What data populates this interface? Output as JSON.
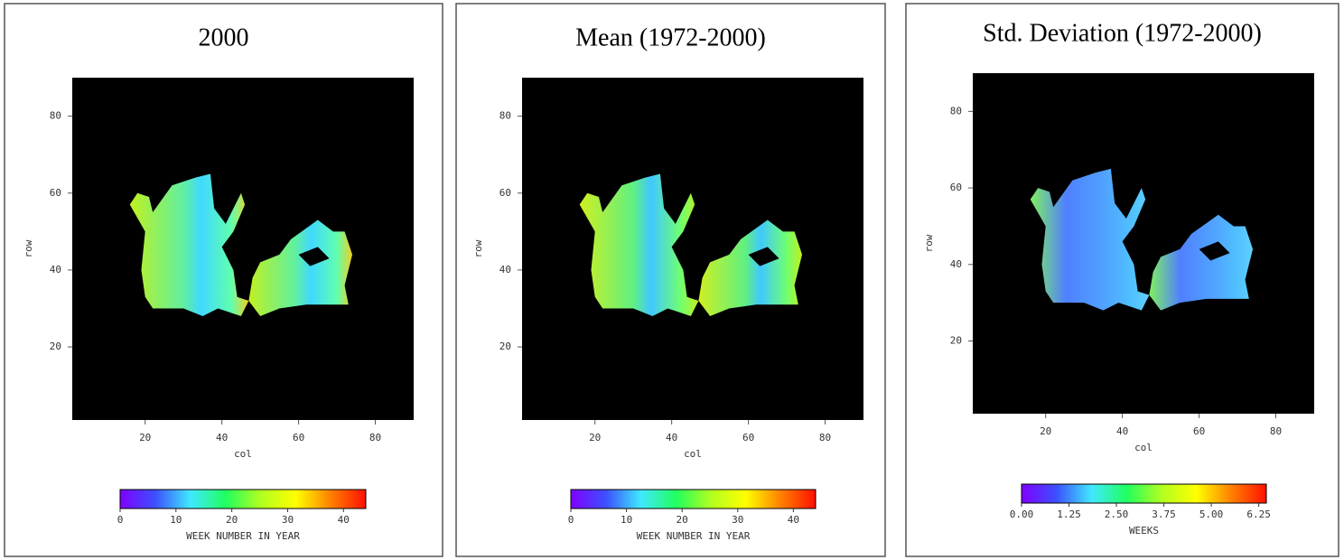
{
  "chart_data": [
    {
      "type": "heatmap",
      "title": "2000",
      "xlabel": "col",
      "ylabel": "row",
      "xlim": [
        1,
        90
      ],
      "ylim": [
        1,
        90
      ],
      "xticks": [
        20,
        40,
        60,
        80
      ],
      "yticks": [
        20,
        40,
        60,
        80
      ],
      "colorbar": {
        "label": "WEEK NUMBER IN YEAR",
        "lim": [
          0,
          44
        ],
        "ticks": [
          0,
          10,
          20,
          30,
          40
        ],
        "colors": [
          "#8000ff",
          "#3c50ff",
          "#40e8ff",
          "#20ff60",
          "#b0ff20",
          "#ffff00",
          "#ff8000",
          "#ff1000"
        ]
      }
    },
    {
      "type": "heatmap",
      "title": "Mean (1972-2000)",
      "xlabel": "col",
      "ylabel": "row",
      "xlim": [
        1,
        90
      ],
      "ylim": [
        1,
        90
      ],
      "xticks": [
        20,
        40,
        60,
        80
      ],
      "yticks": [
        20,
        40,
        60,
        80
      ],
      "colorbar": {
        "label": "WEEK NUMBER IN YEAR",
        "lim": [
          0,
          44
        ],
        "ticks": [
          0,
          10,
          20,
          30,
          40
        ],
        "colors": [
          "#8000ff",
          "#3c50ff",
          "#40e8ff",
          "#20ff60",
          "#b0ff20",
          "#ffff00",
          "#ff8000",
          "#ff1000"
        ]
      }
    },
    {
      "type": "heatmap",
      "title": "Std. Deviation (1972-2000)",
      "xlabel": "col",
      "ylabel": "row",
      "xlim": [
        1,
        90
      ],
      "ylim": [
        1,
        90
      ],
      "xticks": [
        20,
        40,
        60,
        80
      ],
      "yticks": [
        20,
        40,
        60,
        80
      ],
      "colorbar": {
        "label": "WEEKS",
        "lim": [
          0,
          6.45
        ],
        "ticks": [
          {
            "value": 0,
            "label": "0.00"
          },
          {
            "value": 1.25,
            "label": "1.25"
          },
          {
            "value": 2.5,
            "label": "2.50"
          },
          {
            "value": 3.75,
            "label": "3.75"
          },
          {
            "value": 5,
            "label": "5.00"
          },
          {
            "value": 6.25,
            "label": "6.25"
          }
        ],
        "colors": [
          "#8000ff",
          "#3c50ff",
          "#40e8ff",
          "#20ff60",
          "#b0ff20",
          "#ffff00",
          "#ff8000",
          "#ff1000"
        ]
      }
    }
  ]
}
